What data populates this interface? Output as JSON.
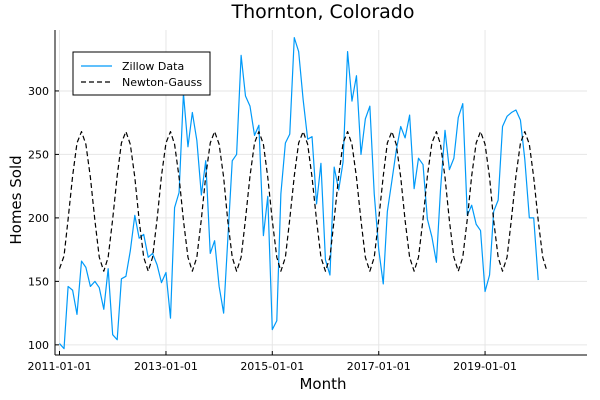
{
  "chart_data": {
    "type": "line",
    "title": "Thornton, Colorado",
    "xlabel": "Month",
    "ylabel": "Homes Sold",
    "x_start": "2011-01",
    "xlim": [
      "2010-12-01",
      "2020-12-01"
    ],
    "ylim": [
      92,
      348
    ],
    "xticks": [
      "2011-01-01",
      "2013-01-01",
      "2015-01-01",
      "2017-01-01",
      "2019-01-01"
    ],
    "yticks": [
      100,
      150,
      200,
      250,
      300
    ],
    "grid": true,
    "legend": "top-left",
    "series": [
      {
        "name": "Zillow Data",
        "color": "#009af9",
        "style": "solid",
        "values": [
          101,
          97,
          146,
          143,
          124,
          166,
          161,
          146,
          150,
          145,
          128,
          160,
          108,
          104,
          152,
          154,
          174,
          202,
          184,
          187,
          169,
          172,
          163,
          149,
          157,
          121,
          208,
          220,
          298,
          256,
          283,
          261,
          218,
          245,
          172,
          182,
          146,
          125,
          182,
          245,
          250,
          328,
          296,
          288,
          265,
          273,
          186,
          217,
          112,
          119,
          219,
          259,
          266,
          342,
          331,
          293,
          262,
          264,
          211,
          243,
          167,
          155,
          240,
          222,
          244,
          331,
          292,
          312,
          250,
          278,
          288,
          219,
          175,
          148,
          205,
          229,
          253,
          272,
          263,
          281,
          223,
          247,
          242,
          199,
          185,
          165,
          222,
          269,
          238,
          247,
          279,
          290,
          202,
          210,
          195,
          190,
          142,
          155,
          205,
          214,
          272,
          280,
          283,
          285,
          277,
          246,
          200,
          200,
          151
        ]
      },
      {
        "name": "Newton-Gauss",
        "color": "#000000",
        "style": "dashed",
        "values": [
          160,
          170,
          199,
          233,
          259,
          268,
          258,
          232,
          198,
          169,
          158,
          169,
          199,
          233,
          259,
          268,
          258,
          232,
          198,
          169,
          158,
          169,
          199,
          233,
          259,
          268,
          258,
          232,
          198,
          169,
          158,
          169,
          199,
          233,
          259,
          268,
          258,
          232,
          198,
          169,
          158,
          169,
          199,
          233,
          259,
          268,
          258,
          232,
          198,
          169,
          158,
          169,
          199,
          233,
          259,
          268,
          258,
          232,
          198,
          169,
          158,
          169,
          199,
          233,
          259,
          268,
          258,
          232,
          198,
          169,
          158,
          169,
          199,
          233,
          259,
          268,
          258,
          232,
          198,
          169,
          158,
          169,
          199,
          233,
          259,
          268,
          258,
          232,
          198,
          169,
          158,
          169,
          199,
          233,
          259,
          268,
          258,
          232,
          198,
          169,
          158,
          169,
          199,
          233,
          259,
          268,
          258,
          232,
          198,
          169,
          158
        ]
      }
    ]
  }
}
